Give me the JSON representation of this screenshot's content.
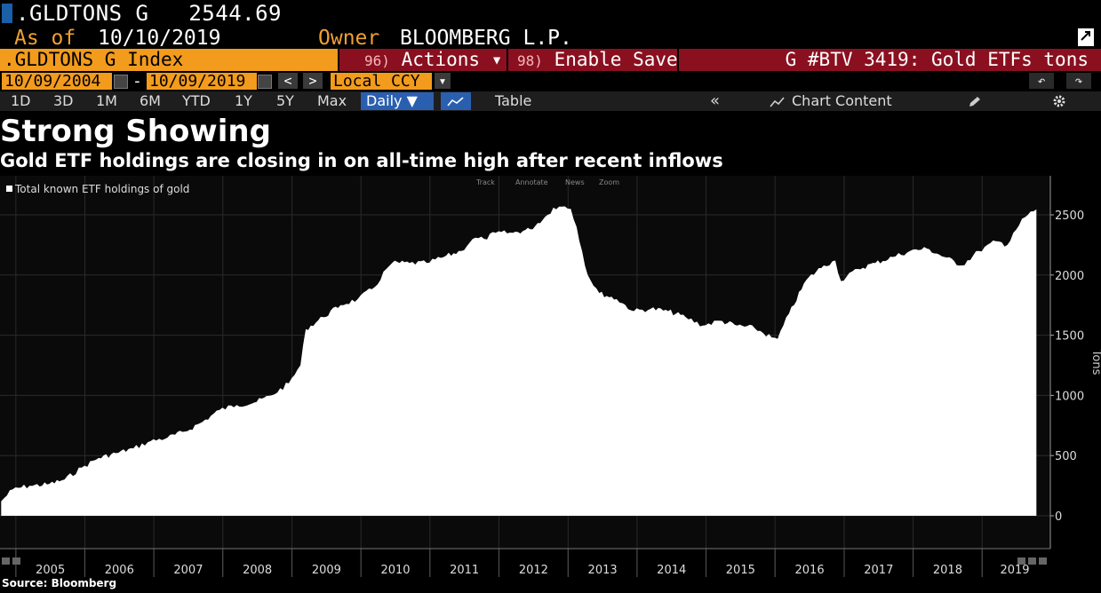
{
  "header": {
    "ticker": ".GLDTONS G",
    "last_value": "2544.69",
    "as_of_label": "As of",
    "as_of_date": "10/10/2019",
    "owner_label": "Owner",
    "owner_value": "BLOOMBERG L.P."
  },
  "toolbar": {
    "index_label": ".GLDTONS G Index",
    "actions_num": "96)",
    "actions_label": "Actions ▾",
    "save_num": "98)",
    "save_label": "Enable Save",
    "chart_id": "G #BTV 3419: Gold ETFs tons"
  },
  "date_row": {
    "start_date": "10/09/2004",
    "dash": "-",
    "end_date": "10/09/2019",
    "prev": "<",
    "next": ">",
    "currency": "Local CCY",
    "currency_dd": "▾",
    "undo": "↶",
    "redo": "↷"
  },
  "range_row": {
    "ranges": [
      "1D",
      "3D",
      "1M",
      "6M",
      "YTD",
      "1Y",
      "5Y",
      "Max"
    ],
    "frequency": "Daily ▼",
    "table_label": "Table",
    "collapse": "«",
    "chart_content": "Chart Content",
    "edit_icon": "pencil-icon",
    "settings_icon": "gear-icon"
  },
  "title": "Strong Showing",
  "subtitle": "Gold ETF holdings are closing in on all-time high after recent inflows",
  "source": "Source: Bloomberg",
  "chart_tools": [
    "Track",
    "Annotate",
    "News",
    "Zoom"
  ],
  "colors": {
    "accent_orange": "#f29b1d",
    "bar_red": "#8a1020",
    "selected_blue": "#2a5fb0",
    "area_fill": "#ffffff",
    "background": "#000000"
  },
  "chart_data": {
    "type": "area",
    "legend": "Total known ETF holdings of gold",
    "legend_position": "top-left",
    "ylabel": "Tons",
    "ylim": [
      0,
      2800
    ],
    "yticks": [
      0,
      500,
      1000,
      1500,
      2000,
      2500
    ],
    "xticks": [
      "2005",
      "2006",
      "2007",
      "2008",
      "2009",
      "2010",
      "2011",
      "2012",
      "2013",
      "2014",
      "2015",
      "2016",
      "2017",
      "2018",
      "2019"
    ],
    "x_range": [
      "2004-10-09",
      "2019-10-09"
    ],
    "grid": true,
    "series": [
      {
        "name": "Total known ETF holdings of gold",
        "x": [
          "2004-10",
          "2004-12",
          "2005-03",
          "2005-06",
          "2005-09",
          "2005-12",
          "2006-03",
          "2006-06",
          "2006-09",
          "2006-12",
          "2007-03",
          "2007-06",
          "2007-09",
          "2007-12",
          "2008-03",
          "2008-06",
          "2008-09",
          "2008-12",
          "2009-02",
          "2009-03",
          "2009-06",
          "2009-09",
          "2009-12",
          "2010-03",
          "2010-05",
          "2010-06",
          "2010-09",
          "2010-12",
          "2011-03",
          "2011-06",
          "2011-08",
          "2011-10",
          "2011-12",
          "2012-03",
          "2012-06",
          "2012-09",
          "2012-10",
          "2012-12",
          "2013-01",
          "2013-02",
          "2013-04",
          "2013-06",
          "2013-09",
          "2013-12",
          "2014-03",
          "2014-06",
          "2014-09",
          "2014-12",
          "2015-03",
          "2015-06",
          "2015-09",
          "2015-12",
          "2016-01",
          "2016-03",
          "2016-06",
          "2016-09",
          "2016-11",
          "2016-12",
          "2017-03",
          "2017-06",
          "2017-09",
          "2017-12",
          "2018-03",
          "2018-06",
          "2018-09",
          "2018-12",
          "2019-03",
          "2019-05",
          "2019-06",
          "2019-08",
          "2019-10"
        ],
        "values": [
          120,
          220,
          250,
          260,
          300,
          400,
          480,
          520,
          560,
          620,
          650,
          700,
          780,
          880,
          920,
          940,
          1000,
          1100,
          1250,
          1550,
          1650,
          1750,
          1800,
          1900,
          2050,
          2100,
          2100,
          2100,
          2150,
          2200,
          2300,
          2300,
          2350,
          2350,
          2380,
          2500,
          2560,
          2570,
          2550,
          2400,
          2000,
          1850,
          1800,
          1700,
          1720,
          1700,
          1650,
          1580,
          1620,
          1580,
          1560,
          1480,
          1470,
          1680,
          1960,
          2080,
          2120,
          1950,
          2050,
          2100,
          2150,
          2200,
          2220,
          2150,
          2080,
          2200,
          2280,
          2250,
          2350,
          2480,
          2545
        ]
      }
    ]
  }
}
